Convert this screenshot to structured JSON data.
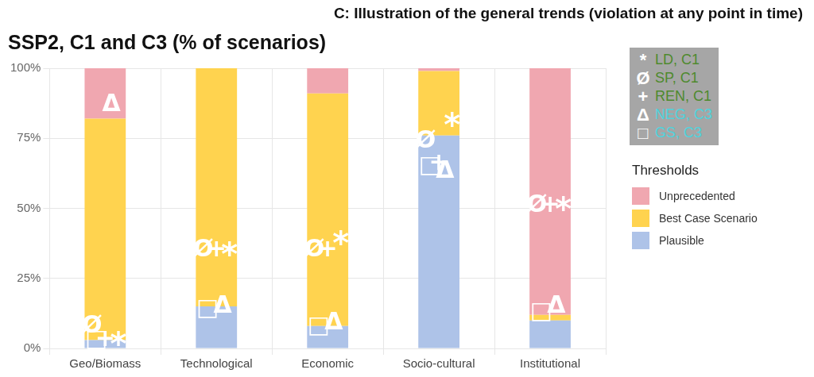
{
  "chart_data": {
    "type": "bar",
    "title": "SSP2, C1 and C3 (% of scenarios)",
    "subtitle": "C: Illustration of the general trends (violation at any point in time)",
    "categories": [
      "Geo/Biomass",
      "Technological",
      "Economic",
      "Socio-cultural",
      "Institutional"
    ],
    "stacked": true,
    "grid": true,
    "legend": "right",
    "legend_title": "Thresholds",
    "series": [
      {
        "name": "Plausible",
        "color": "#aec3e8",
        "values": [
          3,
          15,
          8,
          76,
          10
        ]
      },
      {
        "name": "Best Case Scenario",
        "color": "#ffd34f",
        "values": [
          79,
          85,
          83,
          23,
          2
        ]
      },
      {
        "name": "Unprecedented",
        "color": "#f0a7b0",
        "values": [
          18,
          0,
          9,
          1,
          88
        ]
      }
    ],
    "markers": [
      {
        "name": "LD, C1",
        "symbol": "*",
        "color": "#4e8a2e",
        "values": [
          3,
          35,
          39,
          81,
          51
        ]
      },
      {
        "name": "SP, C1",
        "symbol": "Ø",
        "color": "#4e8a2e",
        "values": [
          8,
          35,
          35,
          74,
          51
        ]
      },
      {
        "name": "REN, C1",
        "symbol": "+",
        "color": "#4e8a2e",
        "values": [
          3,
          35,
          35,
          66,
          51
        ]
      },
      {
        "name": "NEG, C3",
        "symbol": "Δ",
        "color": "#4fd3dc",
        "values": [
          87,
          15,
          9,
          63,
          15
        ]
      },
      {
        "name": "GS, C3",
        "symbol": "□",
        "color": "#4fd3dc",
        "values": [
          3,
          14,
          8,
          65,
          13
        ]
      }
    ],
    "ylim": [
      0,
      100
    ],
    "yticks": [
      {
        "value": 0,
        "label": "0%"
      },
      {
        "value": 25,
        "label": "25%"
      },
      {
        "value": 50,
        "label": "50%"
      },
      {
        "value": 75,
        "label": "75%"
      },
      {
        "value": 100,
        "label": "100%"
      }
    ]
  }
}
